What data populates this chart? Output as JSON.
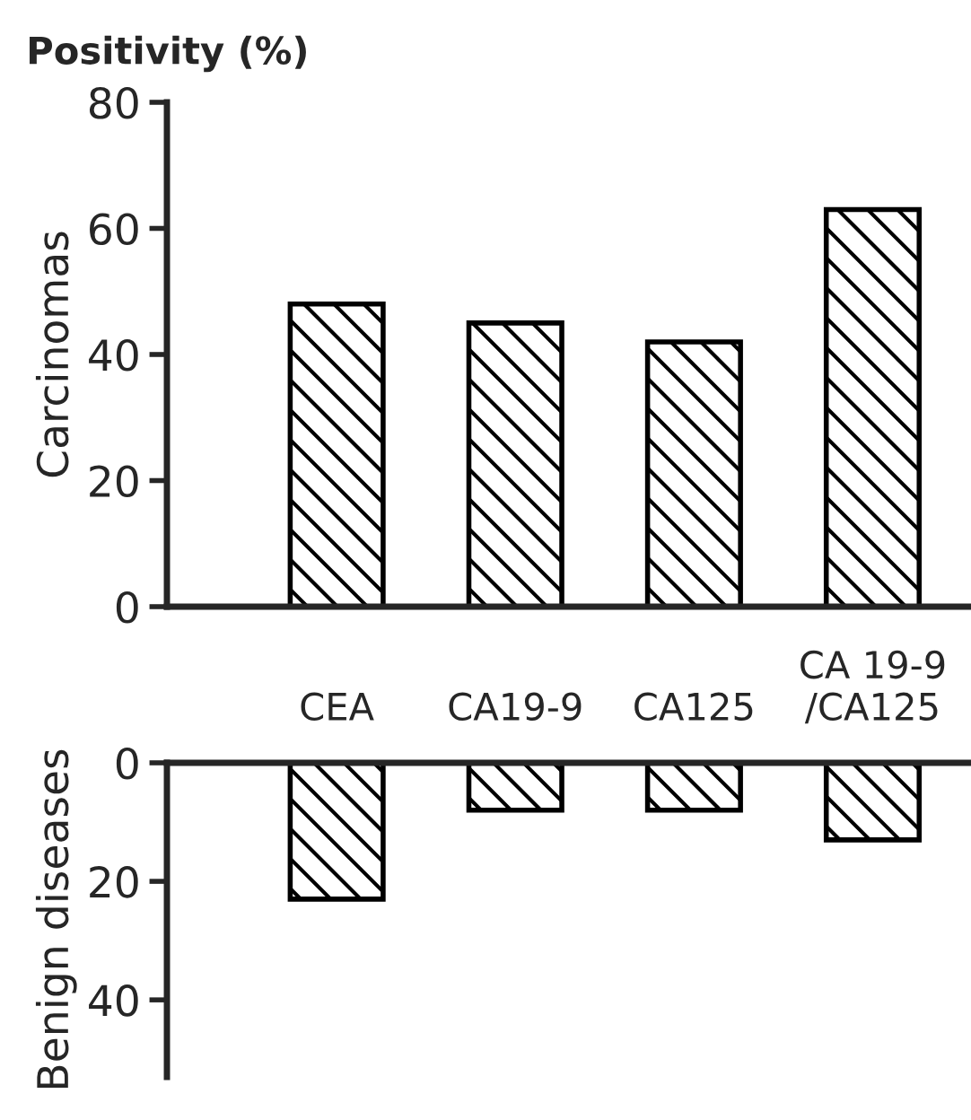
{
  "chart_data": [
    {
      "type": "bar",
      "title": "Positivity (%)",
      "ylabel": "Carcinomas",
      "categories": [
        null,
        null,
        null,
        null
      ],
      "values": [
        48,
        45,
        42,
        63
      ],
      "color": "#000000",
      "ylim": [
        0,
        80
      ],
      "yticks": [
        0,
        20,
        40,
        60,
        80
      ],
      "tick_labels": "y"
    },
    {
      "type": "bar",
      "ylabel": "Benign diseases",
      "categories": [
        "CEA",
        "CA19-9",
        "CA125",
        "CA 19-9\n/CA125"
      ],
      "values": [
        23,
        8,
        8,
        13
      ],
      "color": "#000000",
      "ylim": [
        53,
        0
      ],
      "yticks": [
        0,
        20,
        40
      ]
    }
  ]
}
